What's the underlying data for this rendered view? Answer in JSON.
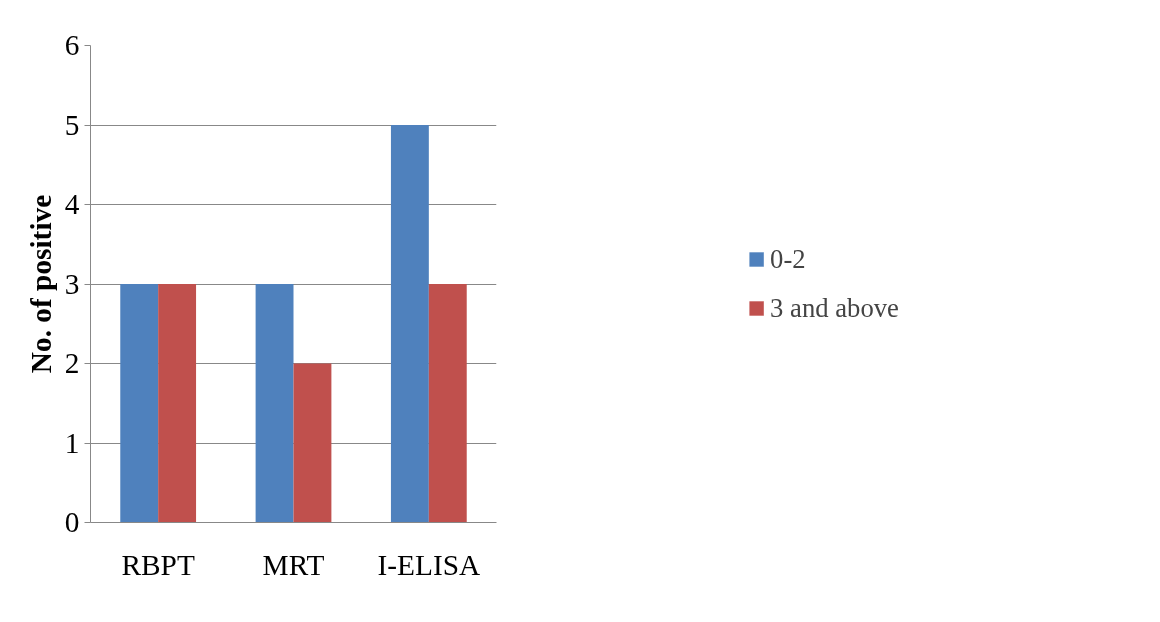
{
  "chart_data": {
    "type": "bar",
    "ylabel": "No. of positive",
    "categories": [
      "RBPT",
      "MRT",
      "I-ELISA"
    ],
    "series": [
      {
        "name": "0-2",
        "color": "#4f81bd",
        "values": [
          3,
          3,
          5
        ]
      },
      {
        "name": "3 and above",
        "color": "#c0504d",
        "values": [
          3,
          2,
          3
        ]
      }
    ],
    "ylim": [
      0,
      6
    ],
    "yticks": [
      0,
      1,
      2,
      3,
      4,
      5,
      6
    ],
    "grid": "y",
    "legend": "right"
  }
}
